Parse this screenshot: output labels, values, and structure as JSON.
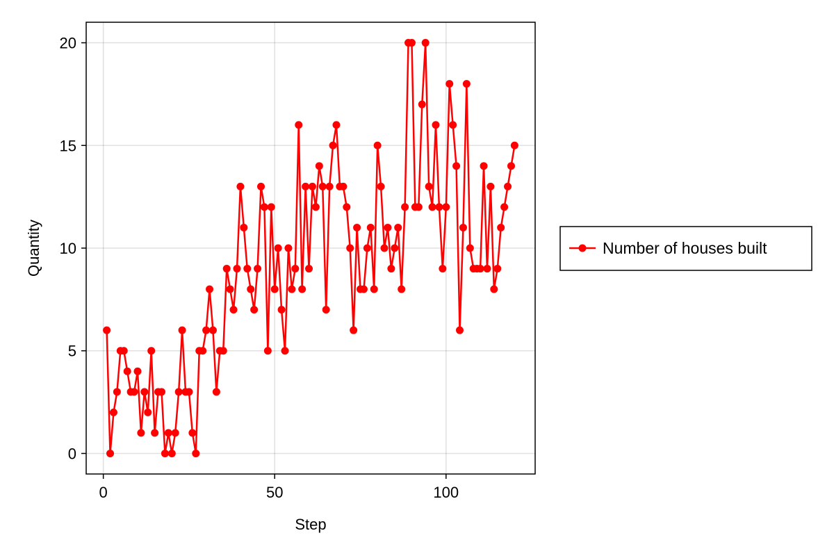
{
  "chart_data": {
    "type": "line",
    "xlabel": "Step",
    "ylabel": "Quantity",
    "xlim": [
      -5,
      126
    ],
    "ylim": [
      -1,
      21
    ],
    "x_ticks": [
      0,
      50,
      100
    ],
    "y_ticks": [
      0,
      5,
      10,
      15,
      20
    ],
    "grid": true,
    "legend_position": "right",
    "series": [
      {
        "name": "Number of houses built",
        "color": "#ff0000",
        "marker": "circle",
        "x": [
          1,
          2,
          3,
          4,
          5,
          6,
          7,
          8,
          9,
          10,
          11,
          12,
          13,
          14,
          15,
          16,
          17,
          18,
          19,
          20,
          21,
          22,
          23,
          24,
          25,
          26,
          27,
          28,
          29,
          30,
          31,
          32,
          33,
          34,
          35,
          36,
          37,
          38,
          39,
          40,
          41,
          42,
          43,
          44,
          45,
          46,
          47,
          48,
          49,
          50,
          51,
          52,
          53,
          54,
          55,
          56,
          57,
          58,
          59,
          60,
          61,
          62,
          63,
          64,
          65,
          66,
          67,
          68,
          69,
          70,
          71,
          72,
          73,
          74,
          75,
          76,
          77,
          78,
          79,
          80,
          81,
          82,
          83,
          84,
          85,
          86,
          87,
          88,
          89,
          90,
          91,
          92,
          93,
          94,
          95,
          96,
          97,
          98,
          99,
          100,
          101,
          102,
          103,
          104,
          105,
          106,
          107,
          108,
          109,
          110,
          111,
          112,
          113,
          114,
          115,
          116,
          117,
          118,
          119,
          120
        ],
        "y": [
          6,
          0,
          2,
          3,
          5,
          5,
          4,
          3,
          3,
          4,
          1,
          3,
          2,
          5,
          1,
          3,
          3,
          0,
          1,
          0,
          1,
          3,
          6,
          3,
          3,
          1,
          0,
          5,
          5,
          6,
          8,
          6,
          3,
          5,
          5,
          9,
          8,
          7,
          9,
          13,
          11,
          9,
          8,
          7,
          9,
          13,
          12,
          5,
          12,
          8,
          10,
          7,
          5,
          10,
          8,
          9,
          16,
          8,
          13,
          9,
          13,
          12,
          14,
          13,
          7,
          13,
          15,
          16,
          13,
          13,
          12,
          10,
          6,
          11,
          8,
          8,
          10,
          11,
          8,
          15,
          13,
          10,
          11,
          9,
          10,
          11,
          8,
          12,
          20,
          20,
          12,
          12,
          17,
          20,
          13,
          12,
          16,
          12,
          9,
          12,
          18,
          16,
          14,
          6,
          11,
          18,
          10,
          9,
          9,
          9,
          14,
          9,
          13,
          8,
          9,
          11,
          12,
          13,
          14,
          15
        ]
      }
    ]
  }
}
